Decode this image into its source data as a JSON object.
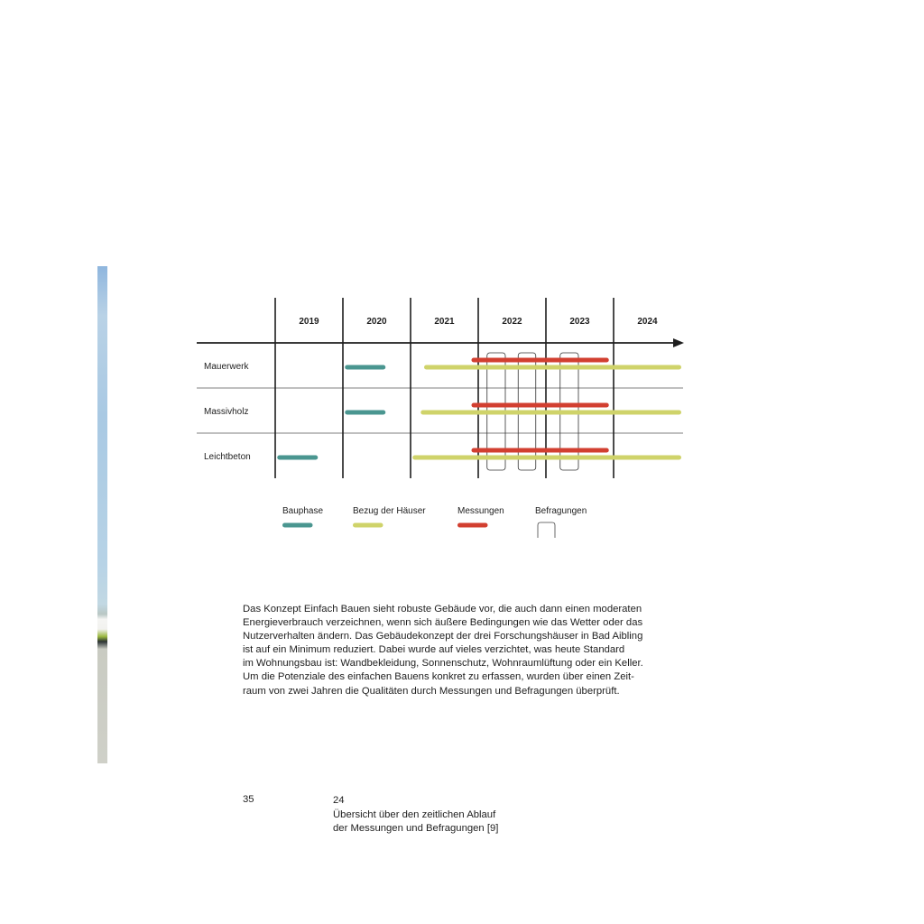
{
  "body_text": [
    "Das Konzept Einfach Bauen sieht robuste Gebäude vor, die auch dann einen moderaten",
    "Energieverbrauch verzeichnen, wenn sich äußere Bedingungen wie das Wetter oder das",
    "Nutzerverhalten ändern. Das Gebäudekonzept der drei Forschungshäuser in Bad Aibling",
    "ist auf ein Minimum reduziert. Dabei wurde auf vieles verzichtet, was heute Standard",
    "im Wohnungsbau ist: Wandbekleidung, Sonnenschutz, Wohnraumlüftung oder ein Keller.",
    "Um die Potenziale des einfachen Bauens konkret zu erfassen, wurden über einen Zeit-",
    "raum von zwei Jahren die Qualitäten durch Messungen und Befragungen überprüft."
  ],
  "page_number": "35",
  "caption": {
    "number": "24",
    "lines": [
      "Übersicht über den zeitlichen Ablauf",
      "der Messungen und Befragungen [9]"
    ]
  },
  "chart_data": {
    "type": "gantt",
    "years": [
      "2019",
      "2020",
      "2021",
      "2022",
      "2023",
      "2024"
    ],
    "xlim": [
      2019,
      2025
    ],
    "rows": [
      "Mauerwerk",
      "Massivholz",
      "Leichtbeton"
    ],
    "colors": {
      "Bauphase": "#4a9690",
      "Bezug der Häuser": "#cfd36a",
      "Messungen": "#d23f30",
      "Befragungen": "#444444"
    },
    "legend": [
      "Bauphase",
      "Bezug der Häuser",
      "Messungen",
      "Befragungen"
    ],
    "bars": [
      {
        "row": "Mauerwerk",
        "series": "Bauphase",
        "start": 2020.03,
        "end": 2020.63
      },
      {
        "row": "Mauerwerk",
        "series": "Bezug der Häuser",
        "start": 2021.2,
        "end": 2025.0
      },
      {
        "row": "Mauerwerk",
        "series": "Messungen",
        "start": 2021.9,
        "end": 2023.93
      },
      {
        "row": "Massivholz",
        "series": "Bauphase",
        "start": 2020.03,
        "end": 2020.63
      },
      {
        "row": "Massivholz",
        "series": "Bezug der Häuser",
        "start": 2021.15,
        "end": 2025.0
      },
      {
        "row": "Massivholz",
        "series": "Messungen",
        "start": 2021.9,
        "end": 2023.93
      },
      {
        "row": "Leichtbeton",
        "series": "Bauphase",
        "start": 2019.03,
        "end": 2019.63
      },
      {
        "row": "Leichtbeton",
        "series": "Bezug der Häuser",
        "start": 2021.03,
        "end": 2025.0
      },
      {
        "row": "Leichtbeton",
        "series": "Messungen",
        "start": 2021.9,
        "end": 2023.93
      }
    ],
    "surveys": [
      {
        "start": 2022.13,
        "end": 2022.4
      },
      {
        "start": 2022.59,
        "end": 2022.85
      },
      {
        "start": 2023.21,
        "end": 2023.48
      }
    ]
  }
}
